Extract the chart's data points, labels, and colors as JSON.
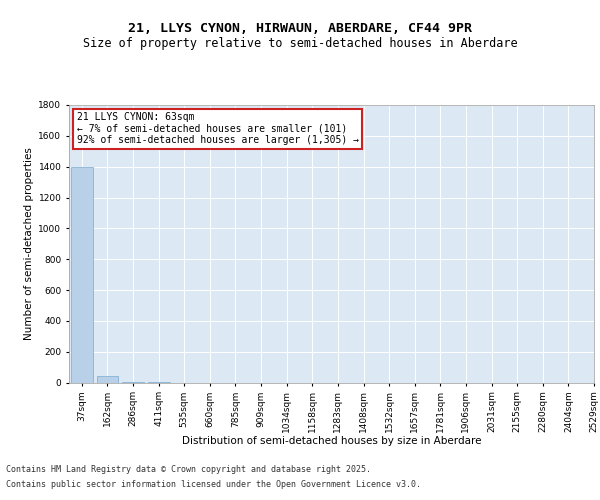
{
  "title_line1": "21, LLYS CYNON, HIRWAUN, ABERDARE, CF44 9PR",
  "title_line2": "Size of property relative to semi-detached houses in Aberdare",
  "xlabel": "Distribution of semi-detached houses by size in Aberdare",
  "ylabel": "Number of semi-detached properties",
  "bins": [
    "37sqm",
    "162sqm",
    "286sqm",
    "411sqm",
    "535sqm",
    "660sqm",
    "785sqm",
    "909sqm",
    "1034sqm",
    "1158sqm",
    "1283sqm",
    "1408sqm",
    "1532sqm",
    "1657sqm",
    "1781sqm",
    "1906sqm",
    "2031sqm",
    "2155sqm",
    "2280sqm",
    "2404sqm",
    "2529sqm"
  ],
  "values": [
    1400,
    40,
    2,
    1,
    0,
    0,
    0,
    0,
    0,
    0,
    0,
    0,
    0,
    0,
    0,
    0,
    0,
    0,
    0,
    0
  ],
  "bar_color": "#b8d0e8",
  "bar_edge_color": "#7aaad0",
  "highlight_color": "#cc2222",
  "annotation_title": "21 LLYS CYNON: 63sqm",
  "annotation_line2": "← 7% of semi-detached houses are smaller (101)",
  "annotation_line3": "92% of semi-detached houses are larger (1,305) →",
  "annotation_box_color": "#cc2222",
  "ylim": [
    0,
    1800
  ],
  "yticks": [
    0,
    200,
    400,
    600,
    800,
    1000,
    1200,
    1400,
    1600,
    1800
  ],
  "background_color": "#dce9f5",
  "footer_line1": "Contains HM Land Registry data © Crown copyright and database right 2025.",
  "footer_line2": "Contains public sector information licensed under the Open Government Licence v3.0.",
  "title_fontsize": 9.5,
  "subtitle_fontsize": 8.5,
  "axis_label_fontsize": 7.5,
  "tick_fontsize": 6.5,
  "annotation_fontsize": 7,
  "footer_fontsize": 6
}
